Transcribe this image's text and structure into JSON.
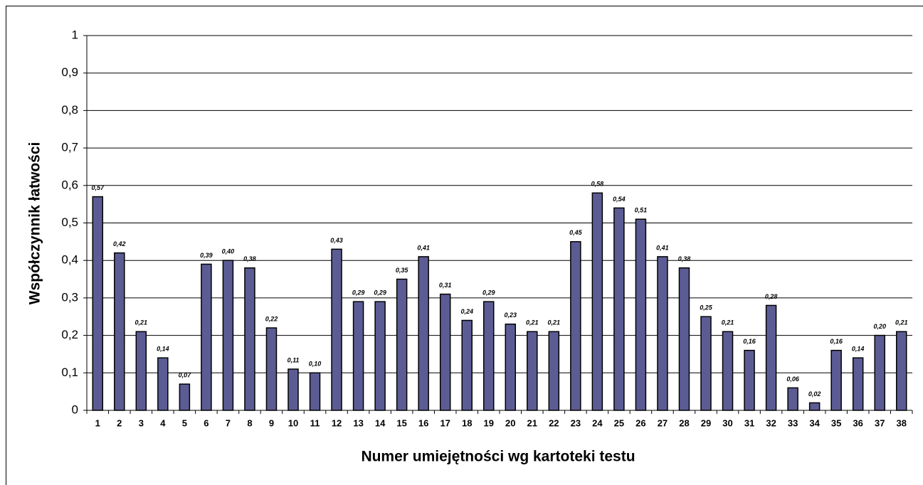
{
  "chart_data": {
    "type": "bar",
    "y_label": "Współczynnik łatwości",
    "x_label": "Numer umiejętności wg kartoteki testu",
    "categories": [
      "1",
      "2",
      "3",
      "4",
      "5",
      "6",
      "7",
      "8",
      "9",
      "10",
      "11",
      "12",
      "13",
      "14",
      "15",
      "16",
      "17",
      "18",
      "19",
      "20",
      "21",
      "22",
      "23",
      "24",
      "25",
      "26",
      "27",
      "28",
      "29",
      "30",
      "31",
      "32",
      "33",
      "34",
      "35",
      "36",
      "37",
      "38"
    ],
    "values": [
      0.57,
      0.42,
      0.21,
      0.14,
      0.07,
      0.39,
      0.4,
      0.38,
      0.22,
      0.11,
      0.1,
      0.43,
      0.29,
      0.29,
      0.35,
      0.41,
      0.31,
      0.24,
      0.29,
      0.23,
      0.21,
      0.21,
      0.45,
      0.58,
      0.54,
      0.51,
      0.41,
      0.38,
      0.25,
      0.21,
      0.16,
      0.28,
      0.06,
      0.02,
      0.16,
      0.14,
      0.2,
      0.21
    ],
    "value_labels": [
      "0,57",
      "0,42",
      "0,21",
      "0,14",
      "0,07",
      "0,39",
      "0,40",
      "0,38",
      "0,22",
      "0,11",
      "0,10",
      "0,43",
      "0,29",
      "0,29",
      "0,35",
      "0,41",
      "0,31",
      "0,24",
      "0,29",
      "0,23",
      "0,21",
      "0,21",
      "0,45",
      "0,58",
      "0,54",
      "0,51",
      "0,41",
      "0,38",
      "0,25",
      "0,21",
      "0,16",
      "0,28",
      "0,06",
      "0,02",
      "0,16",
      "0,14",
      "0,20",
      "0,21"
    ],
    "color": "#5c5c94",
    "ylim": [
      0,
      1
    ],
    "yticks": [
      0,
      {
        "value": 0.1,
        "label": "0,1"
      },
      {
        "value": 0.2,
        "label": "0,2"
      },
      {
        "value": 0.3,
        "label": "0,3"
      },
      {
        "value": 0.4,
        "label": "0,4"
      },
      {
        "value": 0.5,
        "label": "0,5"
      },
      {
        "value": 0.6,
        "label": "0,6"
      },
      {
        "value": 0.7,
        "label": "0,7"
      },
      {
        "value": 0.8,
        "label": "0,8"
      },
      {
        "value": 0.9,
        "label": "0,9"
      },
      1
    ],
    "grid": true
  }
}
